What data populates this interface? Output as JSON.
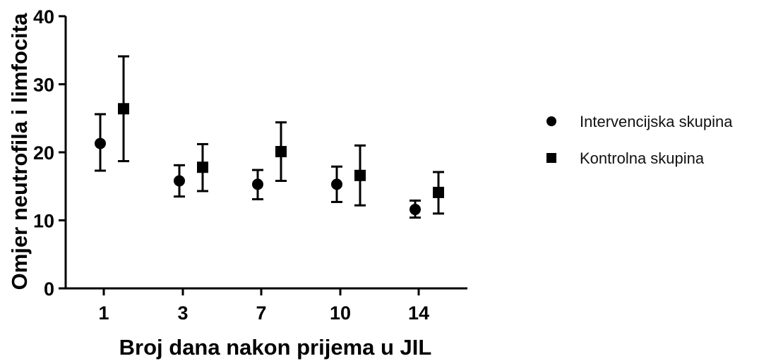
{
  "chart_data": {
    "type": "scatter",
    "title": "",
    "xlabel": "Broj dana nakon prijema u  JIL",
    "ylabel": "Omjer neutrofila i limfocita",
    "categories": [
      "1",
      "3",
      "7",
      "10",
      "14"
    ],
    "ylim": [
      0,
      40
    ],
    "yticks": [
      "0",
      "10",
      "20",
      "30",
      "40"
    ],
    "grid": false,
    "legend_position": "right",
    "series": [
      {
        "name": "Intervencijska skupina",
        "marker": "circle",
        "color": "#000000",
        "values": [
          21.3,
          15.8,
          15.3,
          15.3,
          11.6
        ],
        "err_low": [
          17.3,
          13.5,
          13.1,
          12.7,
          10.4
        ],
        "err_high": [
          25.6,
          18.1,
          17.4,
          17.9,
          12.9
        ]
      },
      {
        "name": "Kontrolna skupina",
        "marker": "square",
        "color": "#000000",
        "values": [
          26.4,
          17.8,
          20.1,
          16.6,
          14.1
        ],
        "err_low": [
          18.7,
          14.3,
          15.8,
          12.2,
          11.0
        ],
        "err_high": [
          34.1,
          21.2,
          24.4,
          21.0,
          17.1
        ]
      }
    ]
  }
}
